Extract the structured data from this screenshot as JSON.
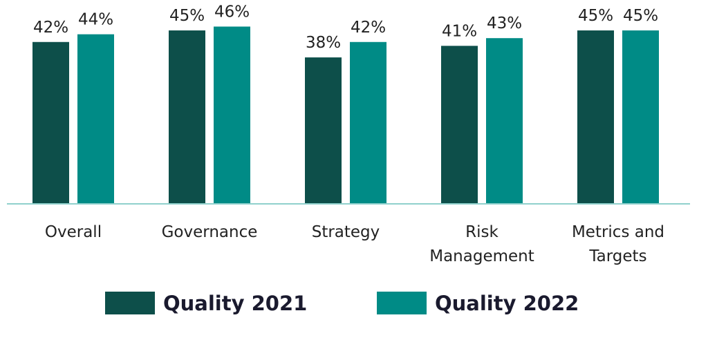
{
  "chart_data": {
    "type": "bar",
    "title": "",
    "xlabel": "",
    "ylabel": "",
    "ylim": [
      0,
      52
    ],
    "grid": false,
    "legend_position": "bottom",
    "categories": [
      [
        "Overall"
      ],
      [
        "Governance"
      ],
      [
        "Strategy"
      ],
      [
        "Risk",
        "Management"
      ],
      [
        "Metrics and",
        "Targets"
      ]
    ],
    "series": [
      {
        "name": "Quality 2021",
        "color": "#0d4f4a",
        "values": [
          42,
          45,
          38,
          41,
          45
        ],
        "labels": [
          "42%",
          "45%",
          "38%",
          "41%",
          "45%"
        ]
      },
      {
        "name": "Quality 2022",
        "color": "#008b86",
        "values": [
          44,
          46,
          42,
          43,
          45
        ],
        "labels": [
          "44%",
          "46%",
          "42%",
          "43%",
          "45%"
        ]
      }
    ],
    "baseline_color": "#8fd0cc"
  }
}
